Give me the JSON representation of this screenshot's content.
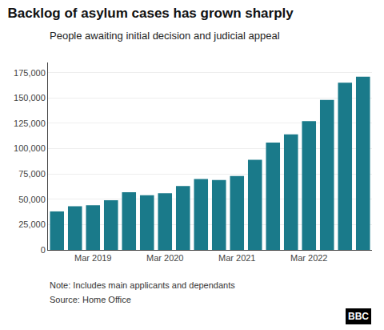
{
  "chart_data": {
    "type": "bar",
    "title": "Backlog of asylum cases has grown sharply",
    "subtitle": "People awaiting initial decision and judicial appeal",
    "note": "Note: Includes main applicants and dependants",
    "source": "Source: Home Office",
    "annotations": [
      "BBC"
    ],
    "categories": [
      null,
      null,
      "Mar 2019",
      null,
      null,
      null,
      "Mar 2020",
      null,
      null,
      null,
      "Mar 2021",
      null,
      null,
      null,
      "Mar 2022",
      null,
      null,
      null
    ],
    "values": [
      38000,
      43000,
      44000,
      49000,
      57000,
      54000,
      56000,
      63000,
      70000,
      69000,
      73000,
      89000,
      106000,
      114000,
      127000,
      148000,
      165000,
      171000
    ],
    "color": "#1a7a8a",
    "ylim": [
      0,
      185000
    ],
    "yticks": [
      0,
      {
        "value": 25000,
        "label": "25,000"
      },
      {
        "value": 50000,
        "label": "50,000"
      },
      {
        "value": 75000,
        "label": "75,000"
      },
      {
        "value": 100000,
        "label": "100,000"
      },
      {
        "value": 125000,
        "label": "125,000"
      },
      {
        "value": 150000,
        "label": "150,000"
      },
      {
        "value": 175000,
        "label": "175,000"
      }
    ],
    "grid": true
  }
}
